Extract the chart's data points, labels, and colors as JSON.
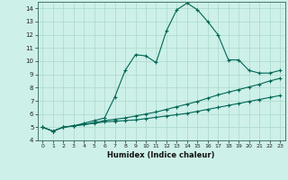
{
  "title": "",
  "xlabel": "Humidex (Indice chaleur)",
  "background_color": "#cdf0e8",
  "grid_color": "#aad8cc",
  "line_color": "#006655",
  "xlim": [
    -0.5,
    23.5
  ],
  "ylim": [
    4,
    14.5
  ],
  "yticks": [
    4,
    5,
    6,
    7,
    8,
    9,
    10,
    11,
    12,
    13,
    14
  ],
  "xticks": [
    0,
    1,
    2,
    3,
    4,
    5,
    6,
    7,
    8,
    9,
    10,
    11,
    12,
    13,
    14,
    15,
    16,
    17,
    18,
    19,
    20,
    21,
    22,
    23
  ],
  "series1_x": [
    0,
    1,
    2,
    3,
    4,
    5,
    6,
    7,
    8,
    9,
    10,
    11,
    12,
    13,
    14,
    15,
    16,
    17,
    18,
    19,
    20,
    21,
    22,
    23
  ],
  "series1_y": [
    5.0,
    4.7,
    5.0,
    5.1,
    5.2,
    5.3,
    5.4,
    5.45,
    5.5,
    5.55,
    5.65,
    5.75,
    5.85,
    5.95,
    6.05,
    6.2,
    6.35,
    6.5,
    6.65,
    6.8,
    6.95,
    7.1,
    7.25,
    7.4
  ],
  "series2_x": [
    0,
    1,
    2,
    3,
    4,
    5,
    6,
    7,
    8,
    9,
    10,
    11,
    12,
    13,
    14,
    15,
    16,
    17,
    18,
    19,
    20,
    21,
    22,
    23
  ],
  "series2_y": [
    5.0,
    4.7,
    5.0,
    5.1,
    5.2,
    5.35,
    5.5,
    5.6,
    5.7,
    5.85,
    6.0,
    6.15,
    6.35,
    6.55,
    6.75,
    6.95,
    7.2,
    7.45,
    7.65,
    7.85,
    8.05,
    8.25,
    8.5,
    8.7
  ],
  "series3_x": [
    0,
    1,
    2,
    3,
    4,
    5,
    6,
    7,
    8,
    9,
    10,
    11,
    12,
    13,
    14,
    15,
    16,
    17,
    18,
    19,
    20,
    21,
    22,
    23
  ],
  "series3_y": [
    5.0,
    4.7,
    5.0,
    5.1,
    5.3,
    5.5,
    5.7,
    7.3,
    9.3,
    10.5,
    10.4,
    9.9,
    12.3,
    13.9,
    14.4,
    13.9,
    13.0,
    12.0,
    10.1,
    10.1,
    9.3,
    9.1,
    9.1,
    9.3
  ],
  "marker_size": 2.5,
  "line_width": 0.8
}
